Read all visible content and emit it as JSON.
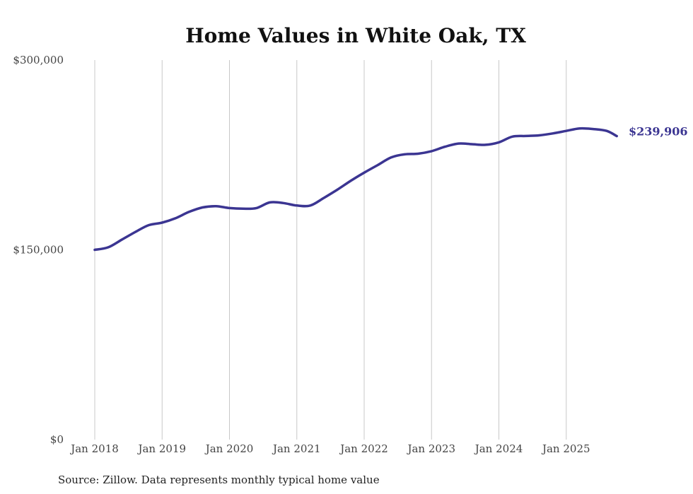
{
  "chart_data": {
    "type": "line",
    "title": "Home Values in White Oak, TX",
    "xlabel": "",
    "ylabel": "",
    "ylim": [
      0,
      300000
    ],
    "y_ticks": [
      {
        "value": 0,
        "label": "$0"
      },
      {
        "value": 150000,
        "label": "$150,000"
      },
      {
        "value": 300000,
        "label": "$300,000"
      }
    ],
    "x_range": [
      2018.0,
      2025.75
    ],
    "x_ticks": [
      {
        "value": 2018,
        "label": "Jan 2018"
      },
      {
        "value": 2019,
        "label": "Jan 2019"
      },
      {
        "value": 2020,
        "label": "Jan 2020"
      },
      {
        "value": 2021,
        "label": "Jan 2021"
      },
      {
        "value": 2022,
        "label": "Jan 2022"
      },
      {
        "value": 2023,
        "label": "Jan 2023"
      },
      {
        "value": 2024,
        "label": "Jan 2024"
      },
      {
        "value": 2025,
        "label": "Jan 2025"
      }
    ],
    "grid": "vertical",
    "series": [
      {
        "name": "Typical home value",
        "color": "#3b3592",
        "x": [
          2018.0,
          2018.2,
          2018.4,
          2018.6,
          2018.8,
          2019.0,
          2019.2,
          2019.4,
          2019.6,
          2019.8,
          2020.0,
          2020.2,
          2020.4,
          2020.6,
          2020.8,
          2021.0,
          2021.2,
          2021.4,
          2021.6,
          2021.8,
          2022.0,
          2022.2,
          2022.4,
          2022.6,
          2022.8,
          2023.0,
          2023.2,
          2023.4,
          2023.6,
          2023.8,
          2024.0,
          2024.2,
          2024.4,
          2024.6,
          2024.8,
          2025.0,
          2025.2,
          2025.4,
          2025.6,
          2025.75
        ],
        "values": [
          150000,
          152000,
          158000,
          164000,
          169500,
          171500,
          175000,
          180000,
          183500,
          184500,
          183000,
          182500,
          183000,
          187500,
          187000,
          185000,
          185000,
          191000,
          197500,
          204500,
          211000,
          217000,
          223000,
          225500,
          226000,
          228000,
          231500,
          234000,
          233500,
          233000,
          235000,
          239500,
          240000,
          240500,
          242000,
          244000,
          246000,
          245500,
          244000,
          239906
        ]
      }
    ],
    "end_label": "$239,906"
  },
  "source_note": "Source: Zillow. Data represents monthly typical home value"
}
